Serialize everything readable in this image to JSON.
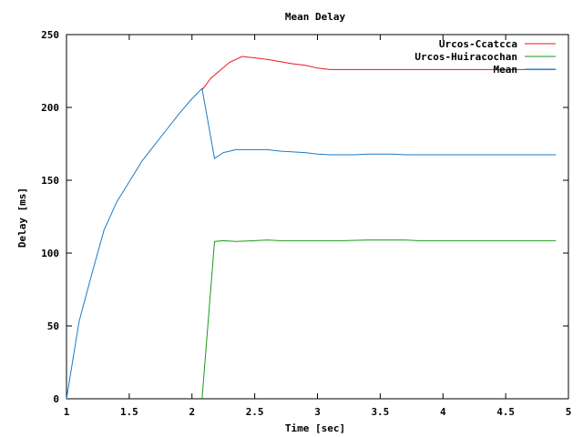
{
  "chart_data": {
    "type": "line",
    "title": "Mean Delay",
    "xlabel": "Time [sec]",
    "ylabel": "Delay [ms]",
    "xlim": [
      1,
      5
    ],
    "ylim": [
      0,
      250
    ],
    "x_ticks": [
      "1",
      "1.5",
      "2",
      "2.5",
      "3",
      "3.5",
      "4",
      "4.5",
      "5"
    ],
    "y_ticks": [
      "0",
      "50",
      "100",
      "150",
      "200",
      "250"
    ],
    "grid": false,
    "legend_position": "top-right",
    "series": [
      {
        "name": "Urcos-Ccatcca",
        "color": "#e41a1c",
        "points": [
          [
            2.08,
            212
          ],
          [
            2.15,
            220
          ],
          [
            2.3,
            231
          ],
          [
            2.4,
            235
          ],
          [
            2.6,
            233
          ],
          [
            2.8,
            230
          ],
          [
            2.9,
            229
          ],
          [
            3.0,
            227
          ],
          [
            3.1,
            226
          ],
          [
            3.5,
            226
          ],
          [
            4.0,
            226
          ],
          [
            4.5,
            226
          ],
          [
            4.9,
            226
          ]
        ]
      },
      {
        "name": "Urcos-Huiracochan",
        "color": "#1a9a1a",
        "points": [
          [
            2.08,
            0
          ],
          [
            2.18,
            108
          ],
          [
            2.25,
            108.5
          ],
          [
            2.35,
            108
          ],
          [
            2.5,
            108.5
          ],
          [
            2.6,
            109
          ],
          [
            2.7,
            108.5
          ],
          [
            3.0,
            108.5
          ],
          [
            3.2,
            108.5
          ],
          [
            3.4,
            109
          ],
          [
            3.7,
            109
          ],
          [
            3.8,
            108.5
          ],
          [
            4.5,
            108.5
          ],
          [
            4.9,
            108.5
          ]
        ]
      },
      {
        "name": "Mean",
        "color": "#1a7ac8",
        "points": [
          [
            1.0,
            0
          ],
          [
            1.1,
            53
          ],
          [
            1.2,
            85
          ],
          [
            1.3,
            116
          ],
          [
            1.4,
            135
          ],
          [
            1.5,
            149
          ],
          [
            1.6,
            163
          ],
          [
            1.7,
            174
          ],
          [
            1.8,
            185
          ],
          [
            1.9,
            196
          ],
          [
            2.0,
            206
          ],
          [
            2.08,
            213
          ],
          [
            2.18,
            165
          ],
          [
            2.25,
            169
          ],
          [
            2.35,
            171
          ],
          [
            2.5,
            171
          ],
          [
            2.6,
            171
          ],
          [
            2.7,
            170
          ],
          [
            2.9,
            169
          ],
          [
            3.0,
            168
          ],
          [
            3.1,
            167.5
          ],
          [
            3.3,
            167.5
          ],
          [
            3.4,
            168
          ],
          [
            3.6,
            168
          ],
          [
            3.7,
            167.5
          ],
          [
            4.0,
            167.5
          ],
          [
            4.5,
            167.5
          ],
          [
            4.9,
            167.5
          ]
        ]
      }
    ]
  }
}
